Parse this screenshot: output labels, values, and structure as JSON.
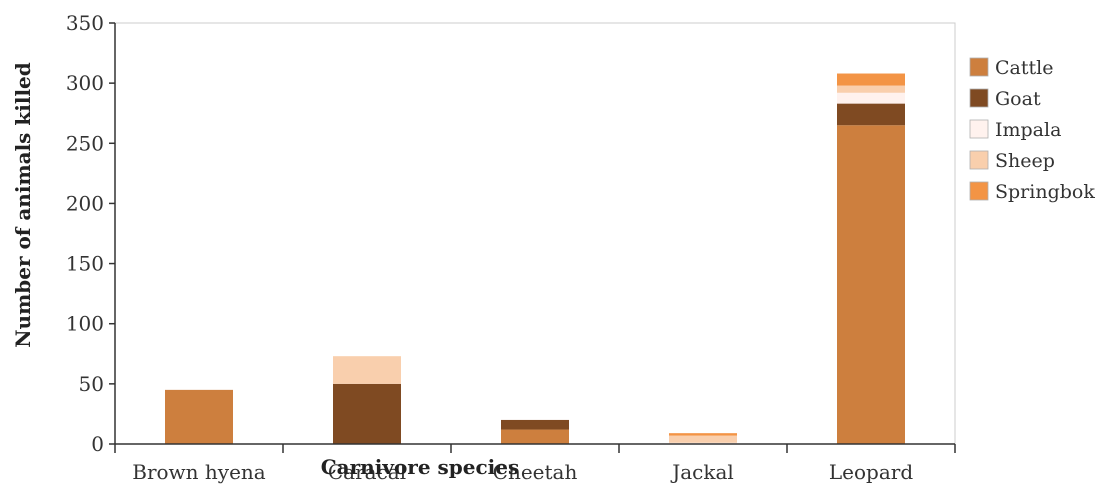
{
  "chart_data": {
    "type": "bar",
    "stacked": true,
    "categories": [
      "Brown hyena",
      "Caracal",
      "Cheetah",
      "Jackal",
      "Leopard"
    ],
    "series": [
      {
        "name": "Cattle",
        "color": "#cd7f3e",
        "values": [
          45,
          0,
          12,
          0,
          265
        ]
      },
      {
        "name": "Goat",
        "color": "#7f4a22",
        "values": [
          0,
          50,
          8,
          0,
          18
        ]
      },
      {
        "name": "Impala",
        "color": "#fff2ee",
        "values": [
          0,
          0,
          0,
          1,
          9
        ]
      },
      {
        "name": "Sheep",
        "color": "#f9cfad",
        "values": [
          0,
          23,
          0,
          6,
          6
        ]
      },
      {
        "name": "Springbok",
        "color": "#f39445",
        "values": [
          0,
          0,
          0,
          2,
          10
        ]
      }
    ],
    "xlabel": "Carnivore species",
    "ylabel": "Number of animals killed",
    "ylim": [
      0,
      350
    ],
    "yticks": [
      0,
      50,
      100,
      150,
      200,
      250,
      300,
      350
    ],
    "grid": false,
    "legend_position": "right"
  }
}
